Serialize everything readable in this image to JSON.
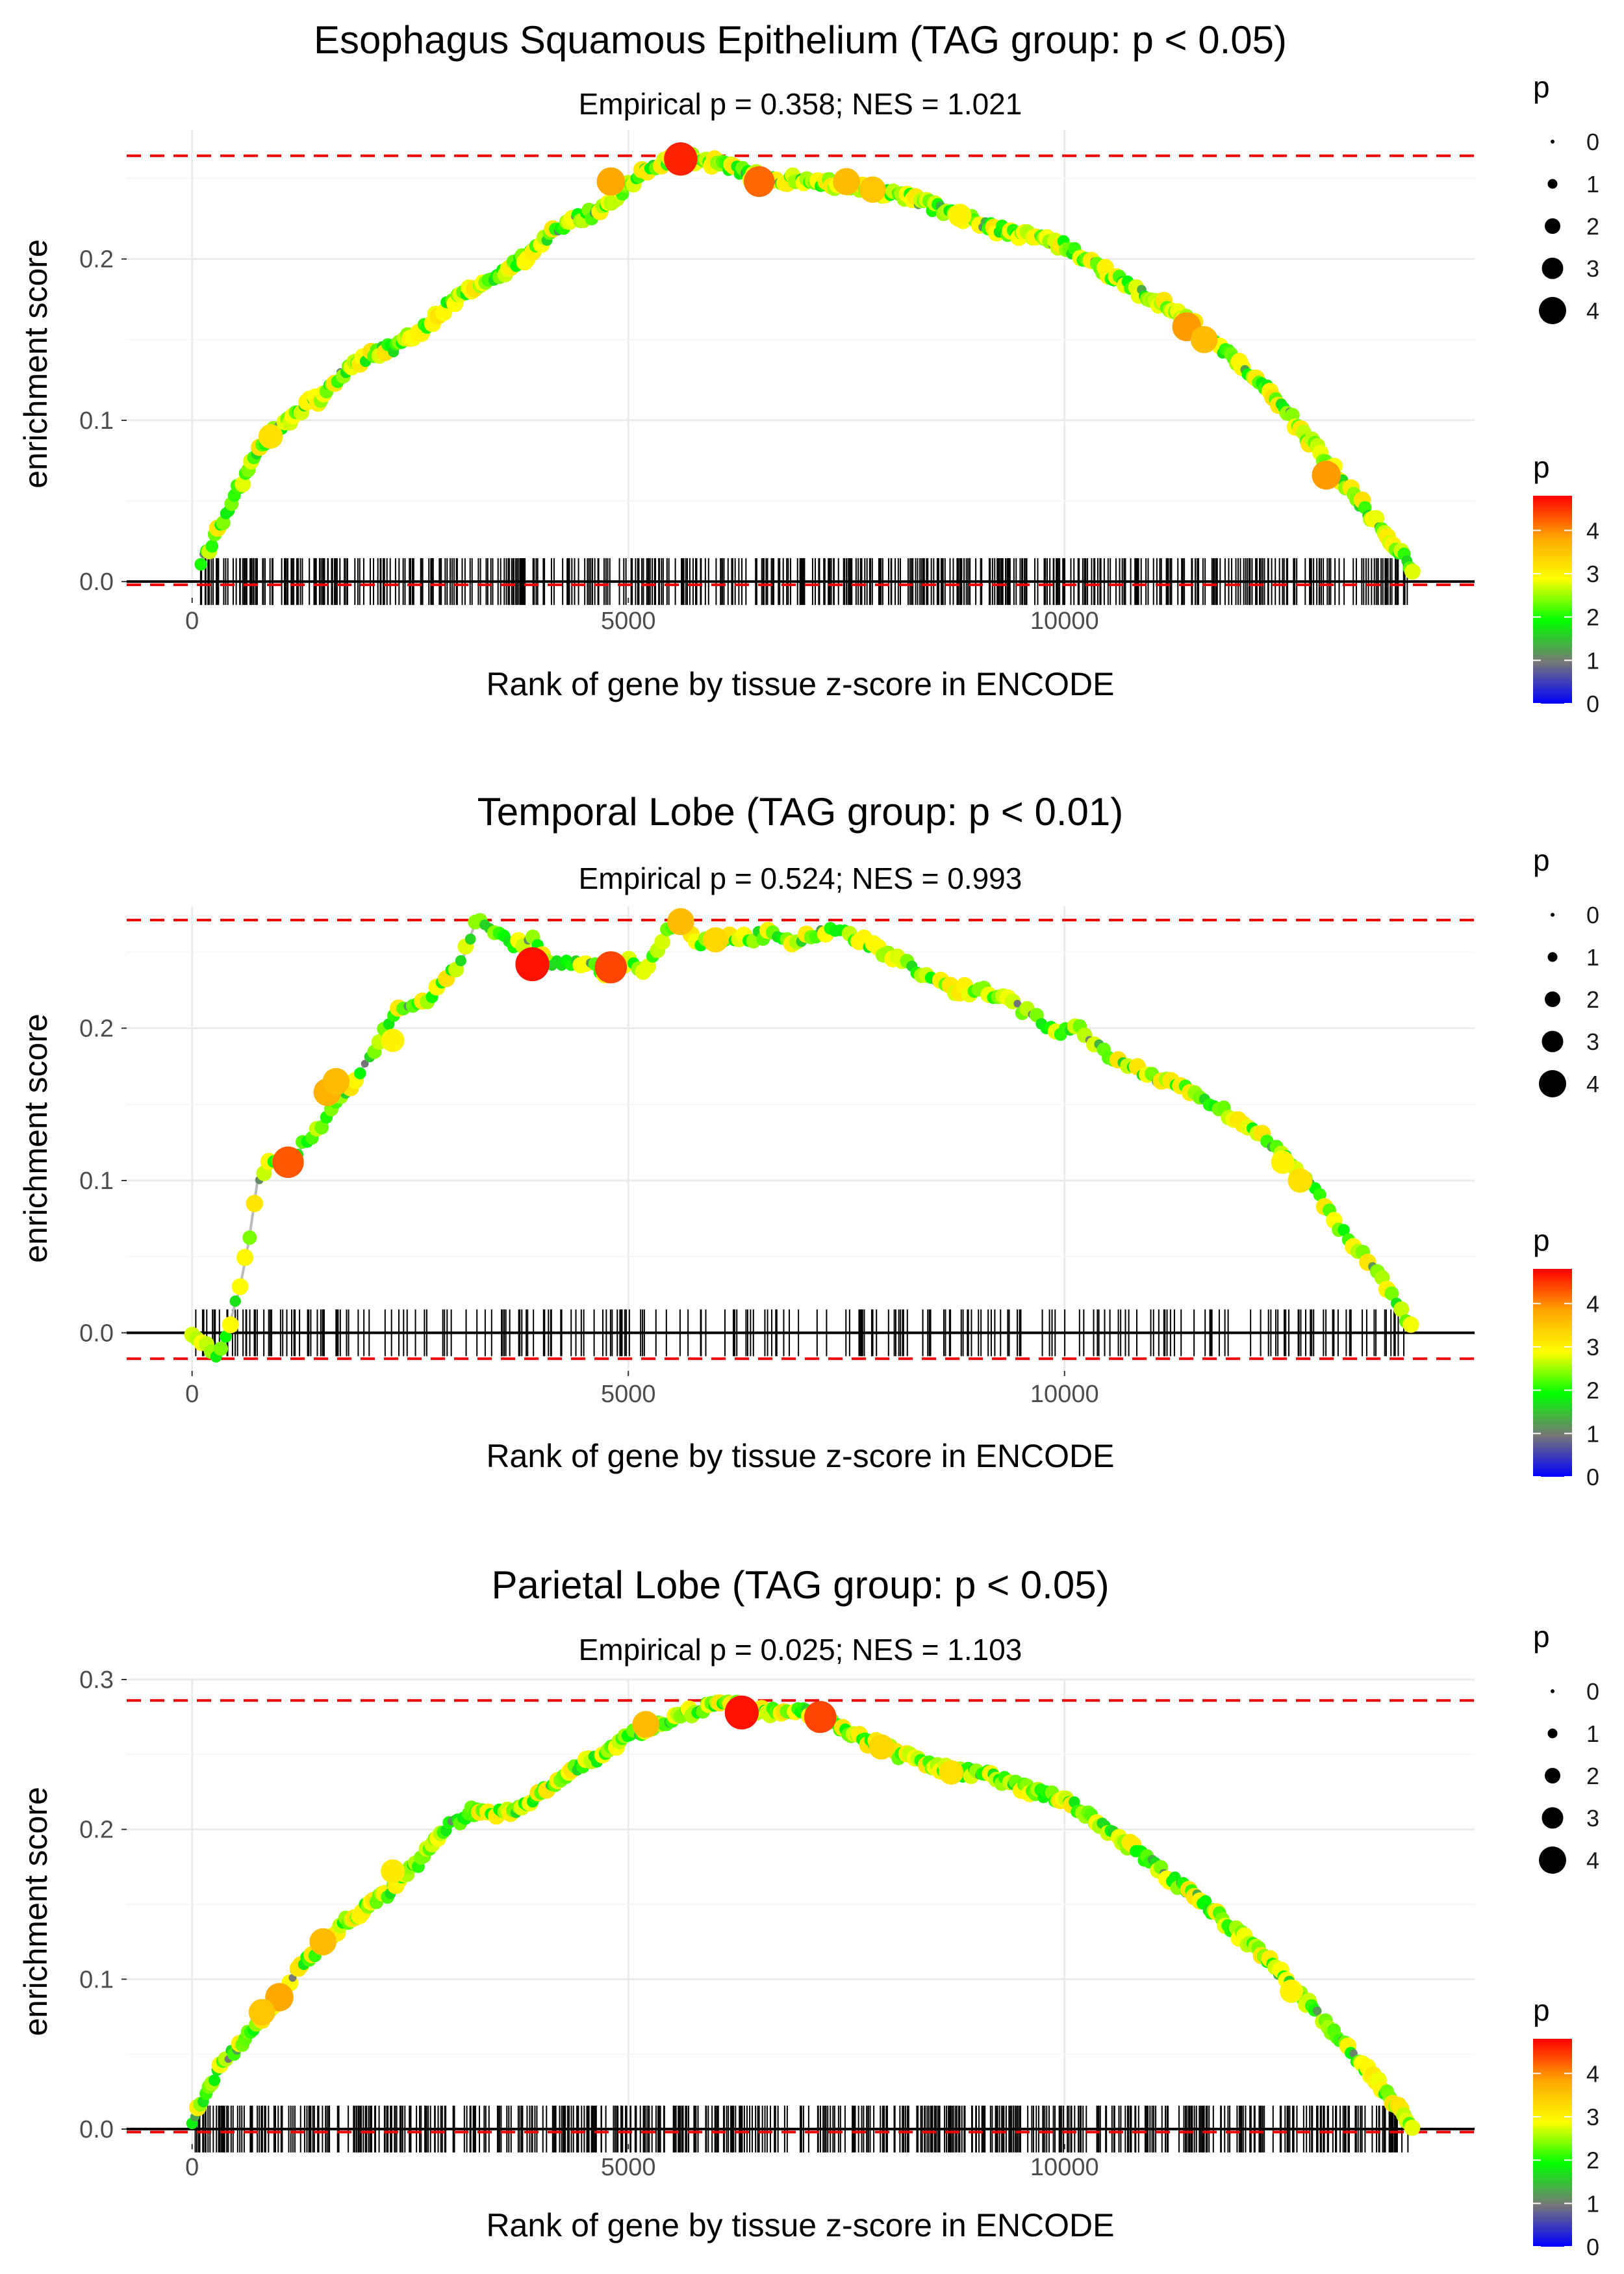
{
  "chart_data": [
    {
      "type": "line",
      "title": "Esophagus Squamous Epithelium (TAG group: p < 0.05)",
      "subtitle": "Empirical p = 0.358; NES = 1.021",
      "xlabel": "Rank of gene by tissue z-score in ENCODE",
      "ylabel": "enrichment score",
      "xlim": [
        -750,
        14700
      ],
      "ylim": [
        -0.01,
        0.28
      ],
      "x_ticks": [
        0,
        5000,
        10000
      ],
      "x_tick_labels": [
        "0",
        "5000",
        "10000"
      ],
      "y_ticks": [
        0.0,
        0.1,
        0.2
      ],
      "y_tick_labels": [
        "0.0",
        "0.1",
        "0.2"
      ],
      "max_es": 0.264,
      "min_es": -0.002,
      "curve_x": [
        100,
        300,
        500,
        700,
        900,
        1100,
        1300,
        1500,
        1700,
        2000,
        2300,
        2600,
        2900,
        3200,
        3500,
        3800,
        4100,
        4400,
        4700,
        5000,
        5200,
        5500,
        5800,
        6100,
        6400,
        6700,
        7000,
        7300,
        7600,
        7900,
        8200,
        8500,
        8800,
        9100,
        9400,
        9700,
        10000,
        10300,
        10600,
        10900,
        11200,
        11500,
        11800,
        12100,
        12400,
        12700,
        13000,
        13300,
        13600,
        13900,
        14000
      ],
      "curve_y": [
        0.012,
        0.032,
        0.055,
        0.075,
        0.092,
        0.1,
        0.11,
        0.115,
        0.128,
        0.14,
        0.145,
        0.155,
        0.17,
        0.182,
        0.19,
        0.2,
        0.215,
        0.225,
        0.23,
        0.245,
        0.255,
        0.262,
        0.262,
        0.258,
        0.252,
        0.248,
        0.25,
        0.247,
        0.245,
        0.242,
        0.238,
        0.232,
        0.227,
        0.22,
        0.217,
        0.213,
        0.208,
        0.198,
        0.188,
        0.178,
        0.17,
        0.158,
        0.145,
        0.13,
        0.115,
        0.095,
        0.075,
        0.055,
        0.035,
        0.015,
        0.003
      ],
      "highlight_points": [
        {
          "x": 5600,
          "y": 0.262,
          "p": 4.6
        },
        {
          "x": 6500,
          "y": 0.248,
          "p": 4.2
        },
        {
          "x": 4800,
          "y": 0.248,
          "p": 3.8
        },
        {
          "x": 7500,
          "y": 0.248,
          "p": 3.6
        },
        {
          "x": 7800,
          "y": 0.243,
          "p": 3.5
        },
        {
          "x": 11400,
          "y": 0.158,
          "p": 3.9
        },
        {
          "x": 11600,
          "y": 0.15,
          "p": 3.6
        },
        {
          "x": 13000,
          "y": 0.066,
          "p": 3.9
        },
        {
          "x": 900,
          "y": 0.09,
          "p": 3.2
        },
        {
          "x": 8800,
          "y": 0.227,
          "p": 3.0
        }
      ],
      "rug_seed": 11,
      "rug_density": 1.0
    },
    {
      "type": "line",
      "title": "Temporal Lobe (TAG group: p < 0.01)",
      "subtitle": "Empirical p = 0.524; NES = 0.993",
      "xlabel": "Rank of gene by tissue z-score in ENCODE",
      "ylabel": "enrichment score",
      "xlim": [
        -750,
        14700
      ],
      "ylim": [
        -0.025,
        0.28
      ],
      "x_ticks": [
        0,
        5000,
        10000
      ],
      "x_tick_labels": [
        "0",
        "5000",
        "10000"
      ],
      "y_ticks": [
        0.0,
        0.1,
        0.2
      ],
      "y_tick_labels": [
        "0.0",
        "0.1",
        "0.2"
      ],
      "max_es": 0.271,
      "min_es": -0.017,
      "curve_x": [
        0,
        250,
        350,
        450,
        550,
        650,
        750,
        900,
        1100,
        1300,
        1500,
        1700,
        1900,
        2100,
        2300,
        2600,
        2900,
        3100,
        3250,
        3500,
        3700,
        3900,
        4100,
        4300,
        4600,
        4800,
        5000,
        5200,
        5400,
        5600,
        5800,
        6000,
        6300,
        6600,
        6900,
        7200,
        7500,
        7800,
        8100,
        8400,
        8700,
        9000,
        9300,
        9600,
        9900,
        10200,
        10500,
        10800,
        11100,
        11400,
        11700,
        12000,
        12300,
        12600,
        12900,
        13200,
        13500,
        13800,
        14000
      ],
      "curve_y": [
        0.0,
        -0.015,
        -0.01,
        0.01,
        0.03,
        0.06,
        0.1,
        0.115,
        0.11,
        0.125,
        0.135,
        0.155,
        0.17,
        0.185,
        0.21,
        0.215,
        0.23,
        0.245,
        0.27,
        0.262,
        0.255,
        0.258,
        0.242,
        0.245,
        0.24,
        0.236,
        0.245,
        0.235,
        0.26,
        0.27,
        0.255,
        0.262,
        0.258,
        0.262,
        0.258,
        0.263,
        0.262,
        0.255,
        0.245,
        0.235,
        0.225,
        0.225,
        0.22,
        0.21,
        0.198,
        0.2,
        0.182,
        0.175,
        0.165,
        0.16,
        0.15,
        0.14,
        0.13,
        0.11,
        0.09,
        0.065,
        0.045,
        0.02,
        0.003
      ],
      "highlight_points": [
        {
          "x": 1100,
          "y": 0.112,
          "p": 4.3
        },
        {
          "x": 1550,
          "y": 0.158,
          "p": 3.7
        },
        {
          "x": 1650,
          "y": 0.165,
          "p": 3.6
        },
        {
          "x": 3900,
          "y": 0.242,
          "p": 4.7
        },
        {
          "x": 4800,
          "y": 0.24,
          "p": 4.4
        },
        {
          "x": 5600,
          "y": 0.27,
          "p": 3.6
        },
        {
          "x": 6000,
          "y": 0.258,
          "p": 3.3
        },
        {
          "x": 2300,
          "y": 0.192,
          "p": 3.0
        },
        {
          "x": 12700,
          "y": 0.1,
          "p": 3.2
        },
        {
          "x": 12500,
          "y": 0.112,
          "p": 3.0
        }
      ],
      "rug_seed": 27,
      "rug_density": 0.45
    },
    {
      "type": "line",
      "title": "Parietal Lobe (TAG group: p < 0.05)",
      "subtitle": "Empirical p = 0.025; NES = 1.103",
      "xlabel": "Rank of gene by tissue z-score in ENCODE",
      "ylabel": "enrichment score",
      "xlim": [
        -750,
        14700
      ],
      "ylim": [
        -0.01,
        0.3
      ],
      "x_ticks": [
        0,
        5000,
        10000
      ],
      "x_tick_labels": [
        "0",
        "5000",
        "10000"
      ],
      "y_ticks": [
        0.0,
        0.1,
        0.2,
        0.3
      ],
      "y_tick_labels": [
        "0.0",
        "0.1",
        "0.2",
        "0.3"
      ],
      "max_es": 0.286,
      "min_es": -0.002,
      "curve_x": [
        0,
        200,
        400,
        600,
        800,
        1000,
        1200,
        1400,
        1600,
        1800,
        2000,
        2300,
        2600,
        2900,
        3200,
        3500,
        3800,
        4100,
        4400,
        4700,
        5000,
        5300,
        5600,
        5900,
        6100,
        6400,
        6700,
        7000,
        7300,
        7600,
        7900,
        8200,
        8500,
        8800,
        9100,
        9400,
        9700,
        10000,
        10300,
        10600,
        10900,
        11200,
        11500,
        11800,
        12100,
        12400,
        12700,
        13000,
        13300,
        13600,
        13900,
        14000
      ],
      "curve_y": [
        0.005,
        0.03,
        0.048,
        0.06,
        0.075,
        0.09,
        0.105,
        0.118,
        0.13,
        0.14,
        0.148,
        0.16,
        0.178,
        0.2,
        0.212,
        0.21,
        0.215,
        0.23,
        0.24,
        0.25,
        0.262,
        0.27,
        0.276,
        0.282,
        0.286,
        0.278,
        0.278,
        0.28,
        0.272,
        0.262,
        0.255,
        0.248,
        0.242,
        0.238,
        0.238,
        0.23,
        0.225,
        0.22,
        0.208,
        0.195,
        0.182,
        0.168,
        0.155,
        0.14,
        0.125,
        0.108,
        0.09,
        0.07,
        0.05,
        0.03,
        0.008,
        0.002
      ],
      "highlight_points": [
        {
          "x": 6300,
          "y": 0.278,
          "p": 4.7
        },
        {
          "x": 7200,
          "y": 0.275,
          "p": 4.4
        },
        {
          "x": 5200,
          "y": 0.27,
          "p": 3.6
        },
        {
          "x": 1000,
          "y": 0.088,
          "p": 3.8
        },
        {
          "x": 800,
          "y": 0.078,
          "p": 3.5
        },
        {
          "x": 1500,
          "y": 0.125,
          "p": 3.6
        },
        {
          "x": 7900,
          "y": 0.255,
          "p": 3.3
        },
        {
          "x": 8700,
          "y": 0.238,
          "p": 3.2
        },
        {
          "x": 2300,
          "y": 0.172,
          "p": 3.1
        },
        {
          "x": 12600,
          "y": 0.092,
          "p": 3.0
        }
      ],
      "rug_seed": 53,
      "rug_density": 1.0
    }
  ],
  "legend": {
    "size_title": "p",
    "size_labels": [
      "0",
      "1",
      "2",
      "3",
      "4"
    ],
    "color_title": "p",
    "color_labels": [
      "4",
      "3",
      "2",
      "1",
      "0"
    ],
    "color_stops": [
      "#0000ff",
      "#777777",
      "#00ff00",
      "#ffff00",
      "#ffa500",
      "#ff0000"
    ]
  },
  "colors": {
    "reference_line": "#ee0000",
    "curve_line": "#bbbbbb",
    "grid": "#ebebeb",
    "zero_line": "#000000"
  }
}
